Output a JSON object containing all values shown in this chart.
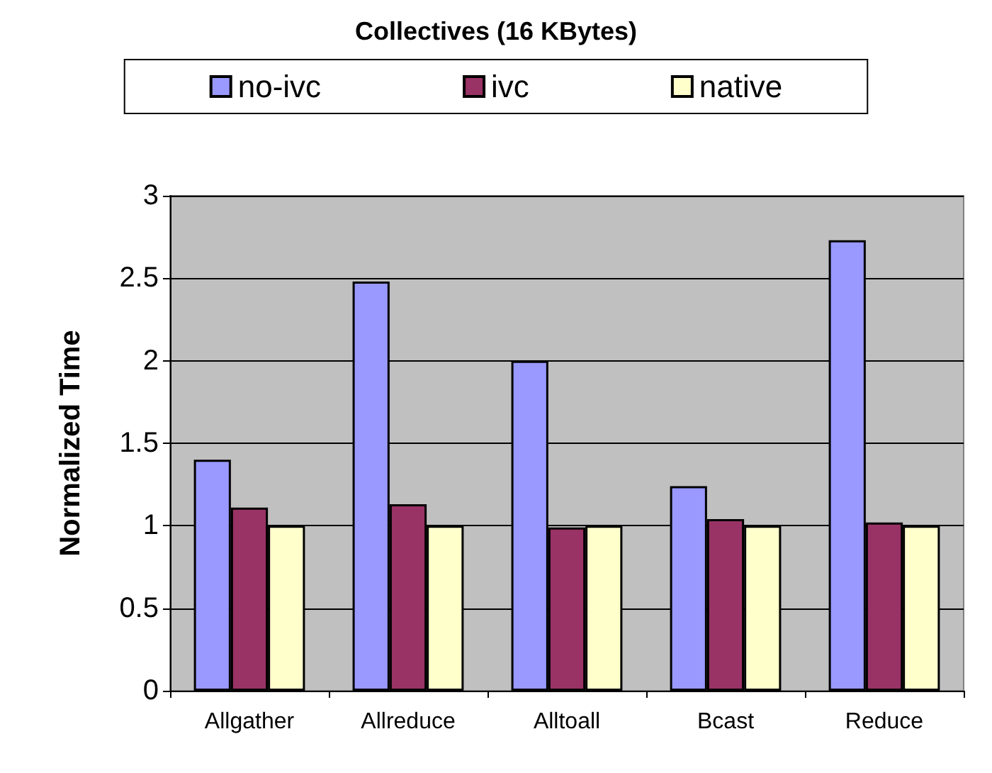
{
  "chart_data": {
    "type": "bar",
    "title": "Collectives (16 KBytes)",
    "ylabel": "Normalized Time",
    "categories": [
      "Allgather",
      "Allreduce",
      "Alltoall",
      "Bcast",
      "Reduce"
    ],
    "series": [
      {
        "name": "no-ivc",
        "color": "#9999ff",
        "values": [
          1.4,
          2.48,
          2.0,
          1.24,
          2.73
        ]
      },
      {
        "name": "ivc",
        "color": "#993366",
        "values": [
          1.11,
          1.13,
          0.99,
          1.04,
          1.02
        ]
      },
      {
        "name": "native",
        "color": "#ffffcc",
        "values": [
          1.0,
          1.0,
          1.0,
          1.0,
          1.0
        ]
      }
    ],
    "ylim": [
      0,
      3
    ],
    "yticks": [
      0,
      0.5,
      1,
      1.5,
      2,
      2.5,
      3
    ],
    "grid": "y",
    "legend": "top"
  }
}
